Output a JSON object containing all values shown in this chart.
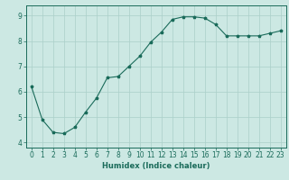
{
  "x": [
    0,
    1,
    2,
    3,
    4,
    5,
    6,
    7,
    8,
    9,
    10,
    11,
    12,
    13,
    14,
    15,
    16,
    17,
    18,
    19,
    20,
    21,
    22,
    23
  ],
  "y": [
    6.2,
    4.9,
    4.4,
    4.35,
    4.6,
    5.2,
    5.75,
    6.55,
    6.6,
    7.0,
    7.4,
    7.95,
    8.35,
    8.85,
    8.95,
    8.95,
    8.9,
    8.65,
    8.2,
    8.2,
    8.2,
    8.2,
    8.3,
    8.4
  ],
  "line_color": "#1a6b5a",
  "marker": "*",
  "marker_size": 2.5,
  "bg_color": "#cce8e3",
  "grid_color": "#aacfc9",
  "xlabel": "Humidex (Indice chaleur)",
  "xlabel_fontsize": 6,
  "tick_fontsize": 5.5,
  "ylim": [
    3.8,
    9.4
  ],
  "xlim": [
    -0.5,
    23.5
  ],
  "yticks": [
    4,
    5,
    6,
    7,
    8,
    9
  ],
  "xticks": [
    0,
    1,
    2,
    3,
    4,
    5,
    6,
    7,
    8,
    9,
    10,
    11,
    12,
    13,
    14,
    15,
    16,
    17,
    18,
    19,
    20,
    21,
    22,
    23
  ]
}
